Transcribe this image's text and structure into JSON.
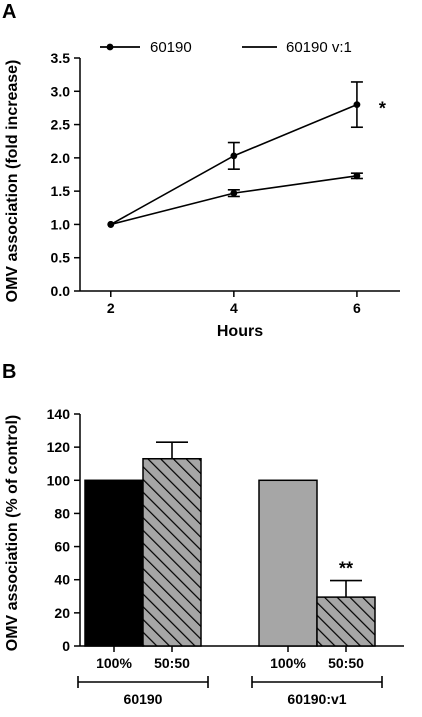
{
  "panels": {
    "a": {
      "letter": "A"
    },
    "b": {
      "letter": "B"
    }
  },
  "colors": {
    "axis": "#000000",
    "bar_black": "#000000",
    "bar_gray": "#a6a6a6",
    "hatch_fill": "#a6a6a6"
  },
  "chart_data": [
    {
      "type": "line",
      "panel": "A",
      "xlabel": "Hours",
      "ylabel": "OMV association (fold increase)",
      "xlim": [
        1.5,
        6.7
      ],
      "ylim": [
        0,
        3.5
      ],
      "x_ticks": [
        "2",
        "4",
        "6"
      ],
      "y_ticks": [
        "0.0",
        "0.5",
        "1.0",
        "1.5",
        "2.0",
        "2.5",
        "3.0",
        "3.5"
      ],
      "grid": false,
      "legend_position": "top",
      "legend": [
        "60190",
        "60190 v:1"
      ],
      "series": [
        {
          "name": "60190",
          "marker": "circle",
          "x": [
            2,
            4,
            6
          ],
          "y": [
            1.0,
            2.03,
            2.8
          ],
          "error": [
            0,
            0.2,
            0.34
          ]
        },
        {
          "name": "60190 v:1",
          "marker": "circle",
          "x": [
            2,
            4,
            6
          ],
          "y": [
            1.0,
            1.47,
            1.73
          ],
          "error": [
            0,
            0.05,
            0.04
          ]
        }
      ],
      "annotations": [
        {
          "text": "*",
          "x": 6,
          "series": "60190"
        }
      ]
    },
    {
      "type": "bar",
      "panel": "B",
      "xlabel": "",
      "ylabel": "OMV association (% of control)",
      "ylim": [
        0,
        140
      ],
      "y_ticks": [
        "0",
        "20",
        "40",
        "60",
        "80",
        "100",
        "120",
        "140"
      ],
      "grid": false,
      "categories": [
        "100%",
        "50:50",
        "100%",
        "50:50"
      ],
      "values": [
        100,
        113,
        100,
        29.5
      ],
      "errors": [
        0,
        10,
        0,
        10
      ],
      "fills": [
        "solid-black",
        "hatched-gray",
        "solid-gray",
        "hatched-gray"
      ],
      "groups": [
        {
          "label": "60190",
          "categories": [
            0,
            1
          ]
        },
        {
          "label": "60190:v1",
          "categories": [
            2,
            3
          ]
        }
      ],
      "annotations": [
        {
          "text": "**",
          "category_index": 3
        }
      ]
    }
  ]
}
